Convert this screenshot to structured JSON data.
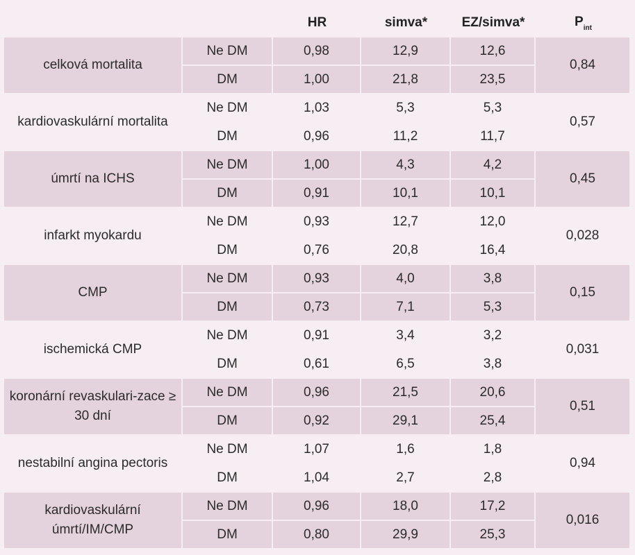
{
  "header": {
    "hr": "HR",
    "simva": "simva*",
    "ezsimva": "EZ/simva*",
    "pint_main": "P",
    "pint_sub": "int"
  },
  "rows": [
    {
      "label": "celková mortalita",
      "p": "0,84",
      "sub": [
        {
          "group": "Ne DM",
          "hr": "0,98",
          "simva": "12,9",
          "ezsimva": "12,6"
        },
        {
          "group": "DM",
          "hr": "1,00",
          "simva": "21,8",
          "ezsimva": "23,5"
        }
      ]
    },
    {
      "label": "kardiovaskulární mortalita",
      "p": "0,57",
      "sub": [
        {
          "group": "Ne DM",
          "hr": "1,03",
          "simva": "5,3",
          "ezsimva": "5,3"
        },
        {
          "group": "DM",
          "hr": "0,96",
          "simva": "11,2",
          "ezsimva": "11,7"
        }
      ]
    },
    {
      "label": "úmrtí na ICHS",
      "p": "0,45",
      "sub": [
        {
          "group": "Ne DM",
          "hr": "1,00",
          "simva": "4,3",
          "ezsimva": "4,2"
        },
        {
          "group": "DM",
          "hr": "0,91",
          "simva": "10,1",
          "ezsimva": "10,1"
        }
      ]
    },
    {
      "label": "infarkt myokardu",
      "p": "0,028",
      "sub": [
        {
          "group": "Ne DM",
          "hr": "0,93",
          "simva": "12,7",
          "ezsimva": "12,0"
        },
        {
          "group": "DM",
          "hr": "0,76",
          "simva": "20,8",
          "ezsimva": "16,4"
        }
      ]
    },
    {
      "label": "CMP",
      "p": "0,15",
      "sub": [
        {
          "group": "Ne DM",
          "hr": "0,93",
          "simva": "4,0",
          "ezsimva": "3,8"
        },
        {
          "group": "DM",
          "hr": "0,73",
          "simva": "7,1",
          "ezsimva": "5,3"
        }
      ]
    },
    {
      "label": "ischemická CMP",
      "p": "0,031",
      "sub": [
        {
          "group": "Ne DM",
          "hr": "0,91",
          "simva": "3,4",
          "ezsimva": "3,2"
        },
        {
          "group": "DM",
          "hr": "0,61",
          "simva": "6,5",
          "ezsimva": "3,8"
        }
      ]
    },
    {
      "label": "koronární revaskulari-zace ≥ 30 dní",
      "p": "0,51",
      "sub": [
        {
          "group": "Ne DM",
          "hr": "0,96",
          "simva": "21,5",
          "ezsimva": "20,6"
        },
        {
          "group": "DM",
          "hr": "0,92",
          "simva": "29,1",
          "ezsimva": "25,4"
        }
      ]
    },
    {
      "label": "nestabilní angina pectoris",
      "p": "0,94",
      "sub": [
        {
          "group": "Ne DM",
          "hr": "1,07",
          "simva": "1,6",
          "ezsimva": "1,8"
        },
        {
          "group": "DM",
          "hr": "1,04",
          "simva": "2,7",
          "ezsimva": "2,8"
        }
      ]
    },
    {
      "label": "kardiovaskulární úmrtí/IM/CMP",
      "p": "0,016",
      "sub": [
        {
          "group": "Ne DM",
          "hr": "0,96",
          "simva": "18,0",
          "ezsimva": "17,2"
        },
        {
          "group": "DM",
          "hr": "0,80",
          "simva": "29,9",
          "ezsimva": "25,3"
        }
      ]
    }
  ]
}
